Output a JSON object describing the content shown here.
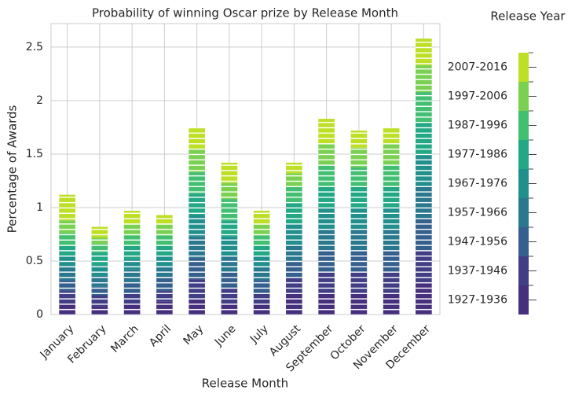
{
  "chart_data": {
    "type": "bar",
    "stacked": true,
    "title": "Probability of winning Oscar prize by Release Month",
    "x_label": "Release Month",
    "y_label": "Percentage of Awards",
    "legend_title": "Release Year",
    "categories": [
      "January",
      "February",
      "March",
      "April",
      "May",
      "June",
      "July",
      "August",
      "September",
      "October",
      "November",
      "December"
    ],
    "ylim": [
      0,
      2.72
    ],
    "yticks": [
      0.0,
      0.5,
      1.0,
      1.5,
      2.0,
      2.5
    ],
    "grid": true,
    "series": [
      {
        "name": "1927-1936",
        "color": "#46307e",
        "values": [
          0.1,
          0.08,
          0.1,
          0.12,
          0.15,
          0.1,
          0.1,
          0.2,
          0.2,
          0.2,
          0.2,
          0.3
        ]
      },
      {
        "name": "1937-1946",
        "color": "#413e85",
        "values": [
          0.12,
          0.1,
          0.1,
          0.1,
          0.18,
          0.15,
          0.1,
          0.15,
          0.2,
          0.2,
          0.2,
          0.3
        ]
      },
      {
        "name": "1947-1956",
        "color": "#35608d",
        "values": [
          0.1,
          0.08,
          0.1,
          0.12,
          0.2,
          0.15,
          0.12,
          0.15,
          0.2,
          0.2,
          0.2,
          0.3
        ]
      },
      {
        "name": "1957-1966",
        "color": "#2a788e",
        "values": [
          0.12,
          0.1,
          0.12,
          0.1,
          0.2,
          0.15,
          0.12,
          0.15,
          0.2,
          0.2,
          0.2,
          0.3
        ]
      },
      {
        "name": "1967-1976",
        "color": "#21908d",
        "values": [
          0.1,
          0.1,
          0.1,
          0.1,
          0.2,
          0.18,
          0.1,
          0.2,
          0.2,
          0.2,
          0.2,
          0.3
        ]
      },
      {
        "name": "1977-1986",
        "color": "#22a884",
        "values": [
          0.1,
          0.12,
          0.12,
          0.1,
          0.2,
          0.15,
          0.1,
          0.2,
          0.2,
          0.2,
          0.2,
          0.3
        ]
      },
      {
        "name": "1987-1996",
        "color": "#43bf71",
        "values": [
          0.12,
          0.08,
          0.1,
          0.1,
          0.2,
          0.2,
          0.1,
          0.15,
          0.2,
          0.18,
          0.2,
          0.28
        ]
      },
      {
        "name": "1997-2006",
        "color": "#7ad151",
        "values": [
          0.12,
          0.06,
          0.1,
          0.1,
          0.22,
          0.15,
          0.1,
          0.12,
          0.2,
          0.18,
          0.2,
          0.25
        ]
      },
      {
        "name": "2007-2016",
        "color": "#bddf26",
        "values": [
          0.24,
          0.1,
          0.13,
          0.09,
          0.2,
          0.19,
          0.13,
          0.1,
          0.23,
          0.16,
          0.15,
          0.25
        ]
      }
    ]
  }
}
